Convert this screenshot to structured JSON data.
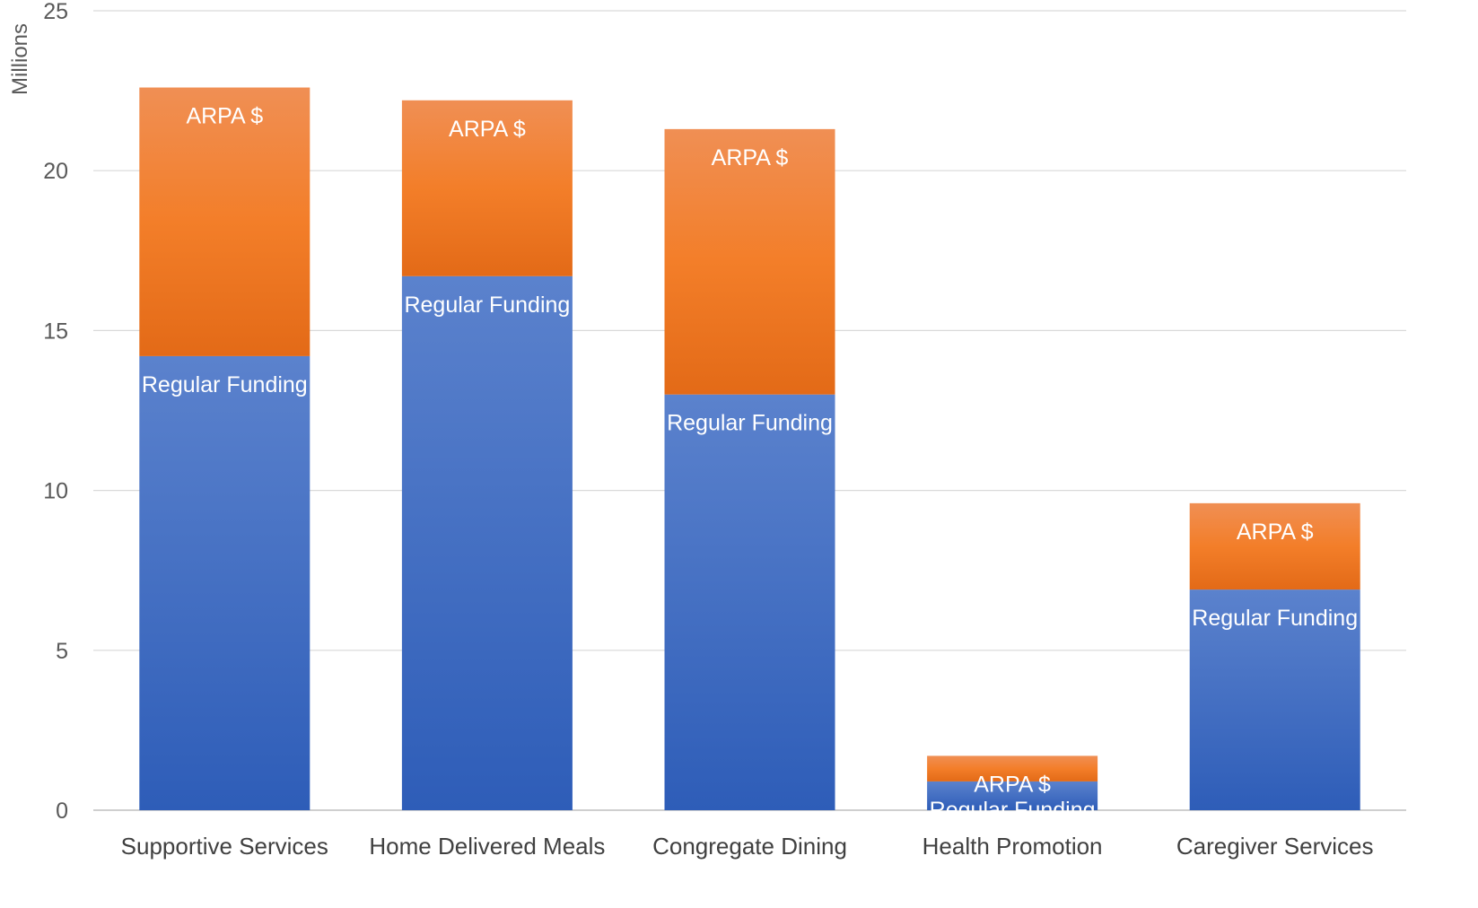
{
  "chart_data": {
    "type": "bar",
    "stacked": true,
    "title": "",
    "xlabel": "",
    "ylabel": "Millions",
    "ylim": [
      0,
      25
    ],
    "yticks": [
      "0",
      "5",
      "10",
      "15",
      "20",
      "25"
    ],
    "grid": true,
    "categories": [
      "Supportive Services",
      "Home Delivered Meals",
      "Congregate Dining",
      "Health Promotion",
      "Caregiver Services"
    ],
    "series": [
      {
        "name": "Regular Funding",
        "label": "Regular Funding",
        "color": "#4472C4",
        "values": [
          14.2,
          16.7,
          13.0,
          0.9,
          6.9
        ]
      },
      {
        "name": "ARPA $",
        "label": "ARPA $",
        "color": "#ED7D31",
        "values": [
          8.4,
          5.5,
          8.3,
          0.8,
          2.7
        ]
      }
    ]
  }
}
